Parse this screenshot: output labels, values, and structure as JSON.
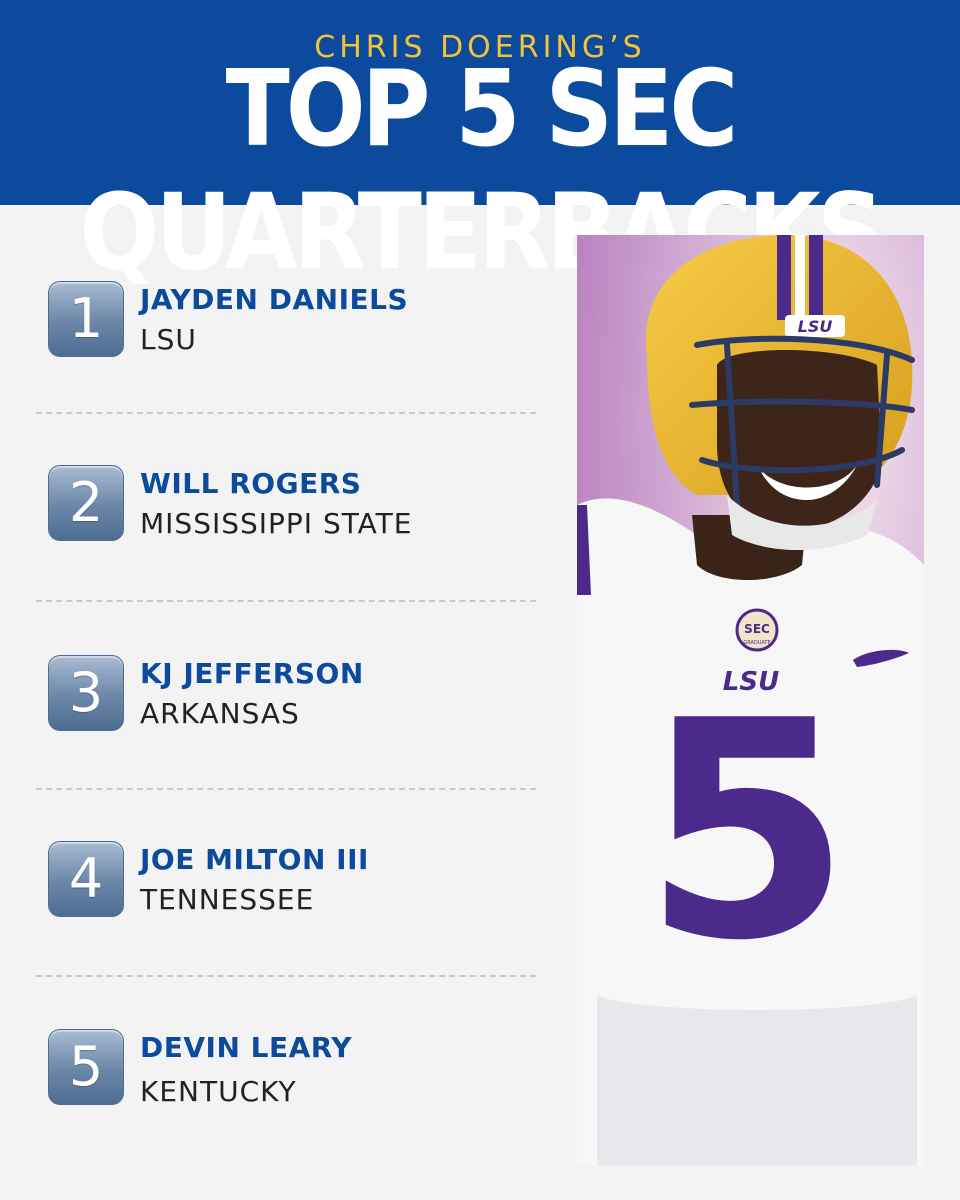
{
  "header": {
    "subtitle": "CHRIS DOERING’S",
    "title": "TOP 5 SEC QUARTERBACKS"
  },
  "rankings": [
    {
      "rank": "1",
      "name": "JAYDEN DANIELS",
      "school": "LSU"
    },
    {
      "rank": "2",
      "name": "WILL ROGERS",
      "school": "MISSISSIPPI STATE"
    },
    {
      "rank": "3",
      "name": "KJ JEFFERSON",
      "school": "ARKANSAS"
    },
    {
      "rank": "4",
      "name": "JOE MILTON III",
      "school": "TENNESSEE"
    },
    {
      "rank": "5",
      "name": "DEVIN LEARY",
      "school": "KENTUCKY"
    }
  ],
  "photo": {
    "helmet_logo": "LSU",
    "chest_logo": "LSU",
    "jersey_number": "5",
    "patch_text": "SEC",
    "patch_subtext": "GRADUATE"
  },
  "colors": {
    "header_bg": "#0b4a9c",
    "subtitle": "#f2c23a",
    "name": "#0b4a9c",
    "jersey_purple": "#4b2a8c",
    "helmet_gold": "#e9b526"
  }
}
